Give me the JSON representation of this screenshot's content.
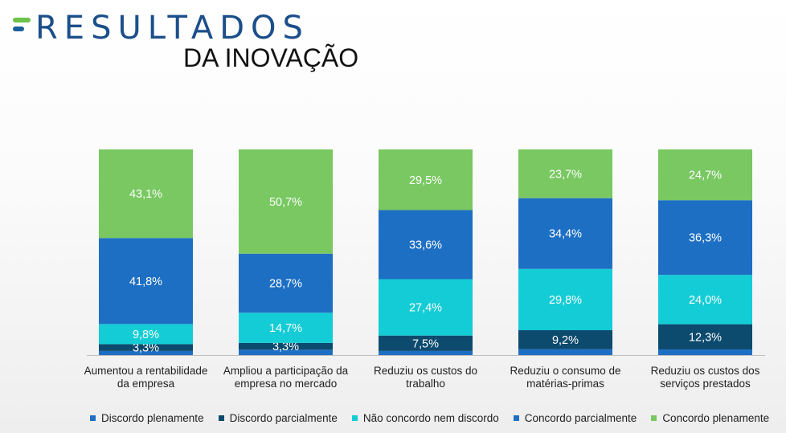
{
  "header": {
    "title": "RESULTADOS",
    "subtitle": "DA INOVAÇÃO"
  },
  "colors": {
    "title": "#1b4f8a",
    "logo_green": "#6cc24a",
    "logo_blue": "#1b5e9a"
  },
  "chart_data": {
    "type": "bar",
    "stacked": true,
    "categories": [
      "Aumentou a rentabilidade da empresa",
      "Ampliou a participação da empresa no mercado",
      "Reduziu os custos do trabalho",
      "Reduziu o consumo de matérias-primas",
      "Reduziu os custos dos serviços prestados"
    ],
    "series": [
      {
        "name": "Discordo plenamente",
        "color": "#1d6fc4",
        "values": [
          2.0,
          2.6,
          2.0,
          2.9,
          2.7
        ],
        "labels": [
          "",
          "",
          "",
          "",
          ""
        ]
      },
      {
        "name": "Discordo parcialmente",
        "color": "#0c4a6e",
        "values": [
          3.3,
          3.3,
          7.5,
          9.2,
          12.3
        ],
        "labels": [
          "3,3%",
          "3,3%",
          "7,5%",
          "9,2%",
          "12,3%"
        ]
      },
      {
        "name": "Não concordo nem discordo",
        "color": "#14ccd6",
        "values": [
          9.8,
          14.7,
          27.4,
          29.8,
          24.0
        ],
        "labels": [
          "9,8%",
          "14,7%",
          "27,4%",
          "29,8%",
          "24,0%"
        ]
      },
      {
        "name": "Concordo parcialmente",
        "color": "#1d6fc4",
        "values": [
          41.8,
          28.7,
          33.6,
          34.4,
          36.3
        ],
        "labels": [
          "41,8%",
          "28,7%",
          "33,6%",
          "34,4%",
          "36,3%"
        ]
      },
      {
        "name": "Concordo plenamente",
        "color": "#79c862",
        "values": [
          43.1,
          50.7,
          29.5,
          23.7,
          24.7
        ],
        "labels": [
          "43,1%",
          "50,7%",
          "29,5%",
          "23,7%",
          "24,7%"
        ]
      }
    ],
    "category_lines": [
      [
        "Aumentou a rentabilidade",
        "da empresa"
      ],
      [
        "Ampliou a participação da",
        "empresa no mercado"
      ],
      [
        "Reduziu os custos do",
        "trabalho"
      ],
      [
        "Reduziu o consumo de",
        "matérias-primas"
      ],
      [
        "Reduziu os custos dos",
        "serviços prestados"
      ]
    ],
    "ylim": [
      0,
      100
    ],
    "grid": false,
    "legend_position": "bottom"
  }
}
